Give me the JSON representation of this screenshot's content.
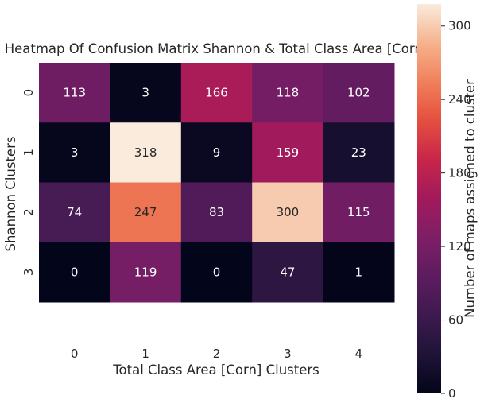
{
  "chart_data": {
    "type": "heatmap",
    "title": "Heatmap Of Confusion Matrix Shannon & Total Class Area [Corn]",
    "xlabel": "Total Class Area [Corn] Clusters",
    "ylabel": "Shannon Clusters",
    "x_categories": [
      "0",
      "1",
      "2",
      "3",
      "4"
    ],
    "y_categories": [
      "0",
      "1",
      "2",
      "3"
    ],
    "values": [
      [
        113,
        3,
        166,
        118,
        102
      ],
      [
        3,
        318,
        9,
        159,
        23
      ],
      [
        74,
        247,
        83,
        300,
        115
      ],
      [
        0,
        119,
        0,
        47,
        1
      ]
    ],
    "colorbar": {
      "label": "Number of maps assigned to cluster",
      "min": 0,
      "max": 318,
      "ticks": [
        0,
        60,
        120,
        180,
        240,
        300
      ],
      "colormap": "rocket"
    },
    "grid": false
  }
}
